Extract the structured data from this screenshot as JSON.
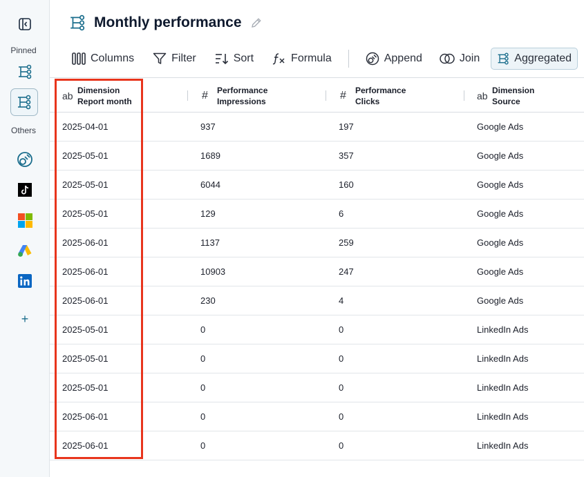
{
  "sidebar": {
    "pinned_label": "Pinned",
    "others_label": "Others",
    "items": [
      {
        "name": "toggle-sidebar-icon"
      },
      {
        "name": "pinned-flow-icon"
      },
      {
        "name": "active-flow-icon"
      },
      {
        "name": "looker-studio-icon"
      },
      {
        "name": "tiktok-icon"
      },
      {
        "name": "microsoft-ads-icon"
      },
      {
        "name": "google-ads-icon"
      },
      {
        "name": "linkedin-icon"
      },
      {
        "name": "add-icon",
        "glyph": "+"
      }
    ]
  },
  "header": {
    "title": "Monthly performance"
  },
  "toolbar": {
    "columns": "Columns",
    "filter": "Filter",
    "sort": "Sort",
    "formula": "Formula",
    "append": "Append",
    "join": "Join",
    "aggregated": "Aggregated"
  },
  "table": {
    "columns": [
      {
        "type_icon": "ab",
        "group": "Dimension",
        "name": "Report month"
      },
      {
        "type_icon": "#",
        "group": "Performance",
        "name": "Impressions"
      },
      {
        "type_icon": "#",
        "group": "Performance",
        "name": "Clicks"
      },
      {
        "type_icon": "ab",
        "group": "Dimension",
        "name": "Source"
      }
    ],
    "rows": [
      [
        "2025-04-01",
        "937",
        "197",
        "Google Ads"
      ],
      [
        "2025-05-01",
        "1689",
        "357",
        "Google Ads"
      ],
      [
        "2025-05-01",
        "6044",
        "160",
        "Google Ads"
      ],
      [
        "2025-05-01",
        "129",
        "6",
        "Google Ads"
      ],
      [
        "2025-06-01",
        "1137",
        "259",
        "Google Ads"
      ],
      [
        "2025-06-01",
        "10903",
        "247",
        "Google Ads"
      ],
      [
        "2025-06-01",
        "230",
        "4",
        "Google Ads"
      ],
      [
        "2025-05-01",
        "0",
        "0",
        "LinkedIn Ads"
      ],
      [
        "2025-05-01",
        "0",
        "0",
        "LinkedIn Ads"
      ],
      [
        "2025-05-01",
        "0",
        "0",
        "LinkedIn Ads"
      ],
      [
        "2025-06-01",
        "0",
        "0",
        "LinkedIn Ads"
      ],
      [
        "2025-06-01",
        "0",
        "0",
        "LinkedIn Ads"
      ]
    ]
  },
  "colors": {
    "accent": "#1a6d8c",
    "highlight": "#e8341c"
  }
}
